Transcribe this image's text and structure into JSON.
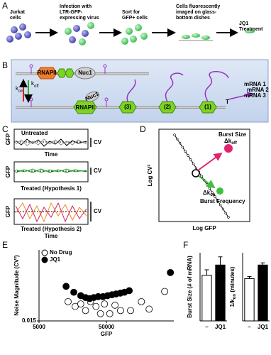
{
  "panel_letters": [
    "A",
    "B",
    "C",
    "D",
    "E",
    "F"
  ],
  "panel_a": {
    "steps": [
      "Jurkat cells",
      "Infection with LTR-GFP-expressing virus",
      "Sort for GFP+ cells",
      "Cells fluorescently imaged on glass-bottom dishes",
      "JQ1 Treatment"
    ]
  },
  "panel_b": {
    "rnapii": [
      "RNAPII",
      "RNAPII"
    ],
    "nuc1": [
      "Nuc1",
      "Nuc1"
    ],
    "k": [
      "k",
      "k"
    ],
    "kon": "on",
    "koff": "off",
    "steps": [
      "(3)",
      "(2)",
      "(1)"
    ],
    "terminator": "T",
    "mrnas": [
      "mRNA 1",
      "mRNA 2",
      "mRNA 3"
    ]
  },
  "panel_c": {
    "untreated": "Untreated",
    "gfp": [
      "GFP",
      "GFP",
      "GFP"
    ],
    "time": [
      "Time",
      "Time"
    ],
    "cv": [
      "CV",
      "CV",
      "CV"
    ],
    "treated": [
      "Treated (Hypothesis 1)",
      "Treated (Hypothesis 2)"
    ]
  },
  "panel_d": {
    "ylabel": "Log CV²",
    "xlabel": "Log GFP",
    "burst_size": "Burst Size",
    "delta_k": [
      "Δk",
      "Δk"
    ],
    "off": "off",
    "on": "on",
    "burst_frequency": "Burst Frequency"
  },
  "chart_data": [
    {
      "type": "scatter",
      "xlabel": "GFP",
      "ylabel": "Noise Magnitude (CV²)",
      "xscale": "log",
      "yscale": "log",
      "xlim": [
        5000,
        500000
      ],
      "ylim": [
        0.015,
        0.15
      ],
      "xticks": [
        5000,
        50000
      ],
      "yticks": [
        0.015
      ],
      "legend": "top-left",
      "series": [
        {
          "name": "No Drug",
          "color": "#000000",
          "filled": false,
          "x": [
            13500,
            17200,
            20800,
            24500,
            29000,
            35000,
            40800,
            46800,
            56000,
            67000,
            81000,
            114000,
            165000,
            215000,
            366000
          ],
          "values": [
            0.028,
            0.024,
            0.026,
            0.021,
            0.028,
            0.024,
            0.019,
            0.026,
            0.019,
            0.025,
            0.021,
            0.021,
            0.028,
            0.022,
            0.039
          ]
        },
        {
          "name": "JQ1",
          "color": "#000000",
          "filled": true,
          "x": [
            12600,
            16400,
            20800,
            24500,
            28200,
            32500,
            37800,
            44500,
            52000,
            60300,
            69500,
            80600,
            92600,
            109000,
            445000
          ],
          "values": [
            0.046,
            0.038,
            0.034,
            0.032,
            0.031,
            0.032,
            0.033,
            0.033,
            0.034,
            0.035,
            0.036,
            0.037,
            0.038,
            0.04,
            0.072
          ]
        }
      ]
    },
    {
      "type": "bar",
      "ylabel": [
        "Burst Size (# of mRNA)"
      ],
      "categories": [
        "–",
        "JQ1"
      ],
      "values": [
        67,
        82
      ],
      "errors": [
        8,
        12
      ],
      "colors": [
        "#ffffff",
        "#000000"
      ],
      "ylim": [
        0,
        100
      ]
    },
    {
      "type": "bar",
      "ylabel": [
        "1/k",
        "on",
        " (minutes)"
      ],
      "categories": [
        "–",
        "JQ1"
      ],
      "values": [
        155,
        205
      ],
      "errors": [
        8,
        8
      ],
      "colors": [
        "#ffffff",
        "#000000"
      ],
      "ylim": [
        0,
        250
      ]
    }
  ]
}
